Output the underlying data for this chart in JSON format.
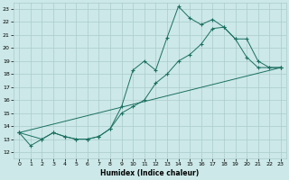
{
  "xlabel": "Humidex (Indice chaleur)",
  "xlim": [
    -0.5,
    23.5
  ],
  "ylim": [
    11.5,
    23.5
  ],
  "yticks": [
    12,
    13,
    14,
    15,
    16,
    17,
    18,
    19,
    20,
    21,
    22,
    23
  ],
  "xticks": [
    0,
    1,
    2,
    3,
    4,
    5,
    6,
    7,
    8,
    9,
    10,
    11,
    12,
    13,
    14,
    15,
    16,
    17,
    18,
    19,
    20,
    21,
    22,
    23
  ],
  "bg_color": "#cce8e8",
  "grid_color": "#aacccc",
  "line_color": "#1a7060",
  "line1_x": [
    0,
    1,
    2,
    3,
    4,
    5,
    6,
    7,
    8,
    9,
    10,
    11,
    12,
    13,
    14,
    15,
    16,
    17,
    18,
    19,
    20,
    21,
    22,
    23
  ],
  "line1_y": [
    13.5,
    12.5,
    13.0,
    13.5,
    13.2,
    13.0,
    13.0,
    13.2,
    13.8,
    15.5,
    18.3,
    19.0,
    18.3,
    20.8,
    23.2,
    22.3,
    21.8,
    22.2,
    21.6,
    20.7,
    19.3,
    18.5,
    18.5,
    18.5
  ],
  "line2_x": [
    0,
    2,
    3,
    4,
    5,
    6,
    7,
    8,
    9,
    10,
    11,
    12,
    13,
    14,
    15,
    16,
    17,
    18,
    19,
    20,
    21,
    22,
    23
  ],
  "line2_y": [
    13.5,
    13.0,
    13.5,
    13.2,
    13.0,
    13.0,
    13.2,
    13.8,
    15.0,
    15.5,
    16.0,
    17.3,
    18.0,
    19.0,
    19.5,
    20.3,
    21.5,
    21.6,
    20.7,
    20.7,
    19.0,
    18.5,
    18.5
  ],
  "line3_x": [
    0,
    23
  ],
  "line3_y": [
    13.5,
    18.5
  ]
}
